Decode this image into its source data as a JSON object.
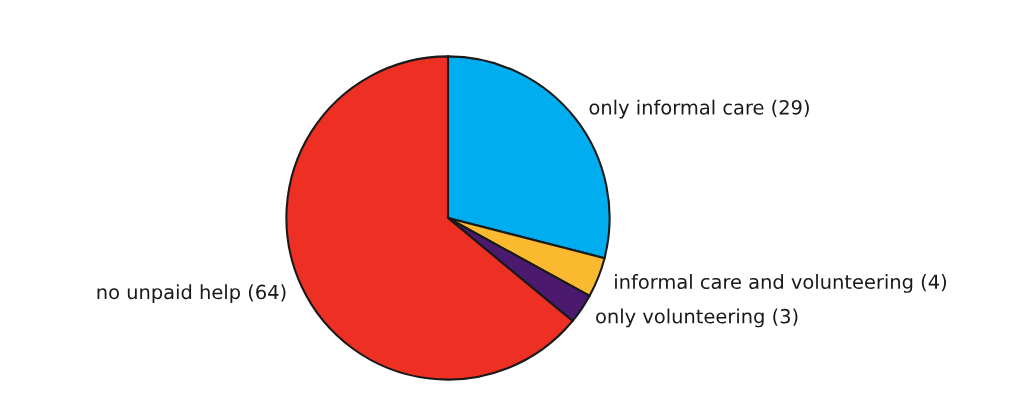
{
  "chart_data": {
    "type": "pie",
    "categories": [
      "only informal care (29)",
      "informal care and volunteering (4)",
      "only volunteering (3)",
      "no unpaid help (64)"
    ],
    "values": [
      29,
      4,
      3,
      64
    ],
    "colors": [
      "#00aeef",
      "#fbb92f",
      "#4b1a6e",
      "#ee3024"
    ]
  }
}
